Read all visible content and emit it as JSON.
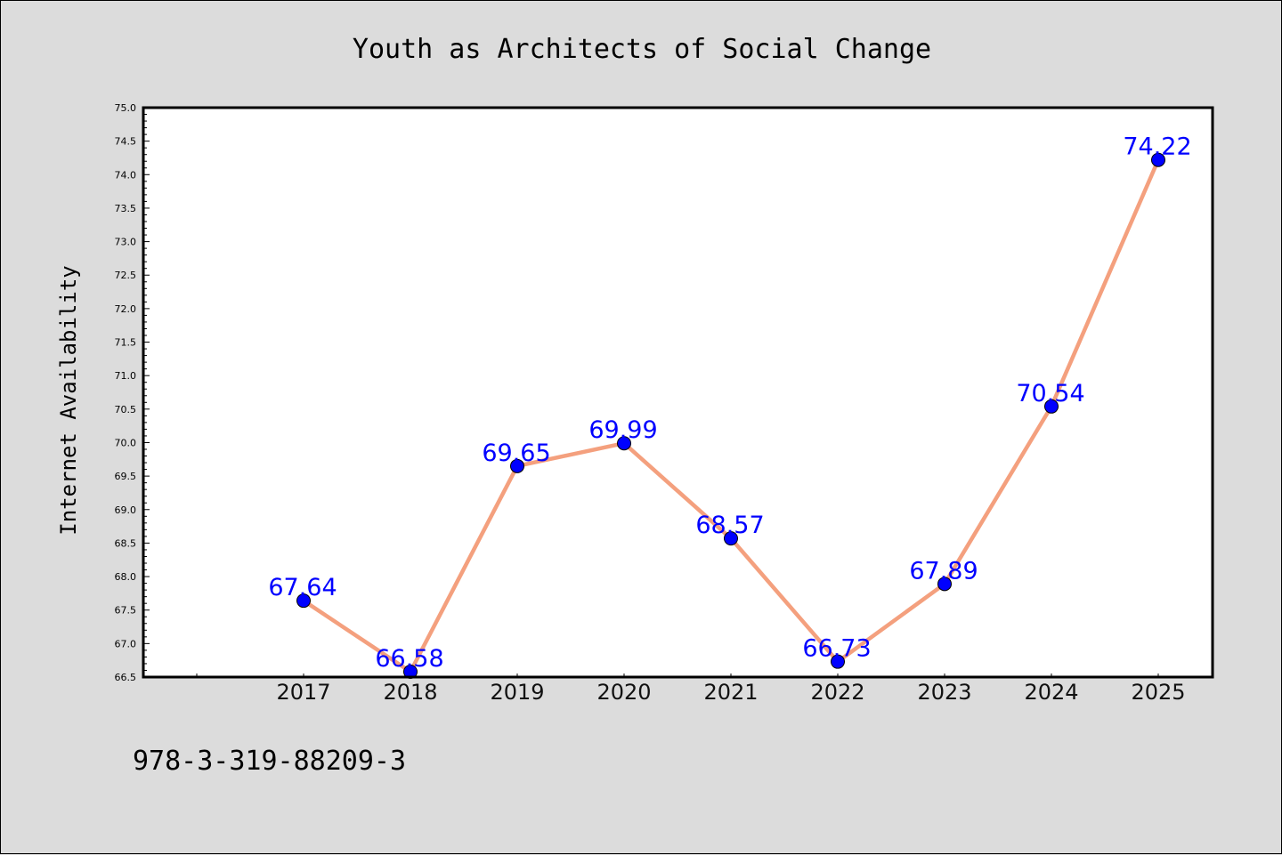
{
  "chart_data": {
    "type": "line",
    "title": "Youth as Architects of Social Change",
    "xlabel": "",
    "ylabel": "Internet Availability",
    "categories": [
      "2017",
      "2018",
      "2019",
      "2020",
      "2021",
      "2022",
      "2023",
      "2024",
      "2025"
    ],
    "series": [
      {
        "values": [
          67.64,
          66.58,
          69.65,
          69.99,
          68.57,
          66.73,
          67.89,
          70.54,
          74.22
        ],
        "line_color": "#f4a07e",
        "marker_color": "#0000ff"
      }
    ],
    "data_labels": [
      "67.64",
      "66.58",
      "69.65",
      "69.99",
      "68.57",
      "66.73",
      "67.89",
      "70.54",
      "74.22"
    ],
    "ylim": [
      66.5,
      75.0
    ],
    "yticks": [
      "66.5",
      "67.0",
      "67.5",
      "68.0",
      "68.5",
      "69.0",
      "69.5",
      "70.0",
      "70.5",
      "71.0",
      "71.5",
      "72.0",
      "72.5",
      "73.0",
      "73.5",
      "74.0",
      "74.5",
      "75.0"
    ],
    "grid": false,
    "legend": "none",
    "colors": {
      "background": "#dcdcdc",
      "plot_background": "#ffffff",
      "line": "#f4a07e",
      "marker": "#0000ff",
      "data_label": "#0000ff"
    }
  },
  "footer": {
    "isbn": "978-3-319-88209-3"
  }
}
